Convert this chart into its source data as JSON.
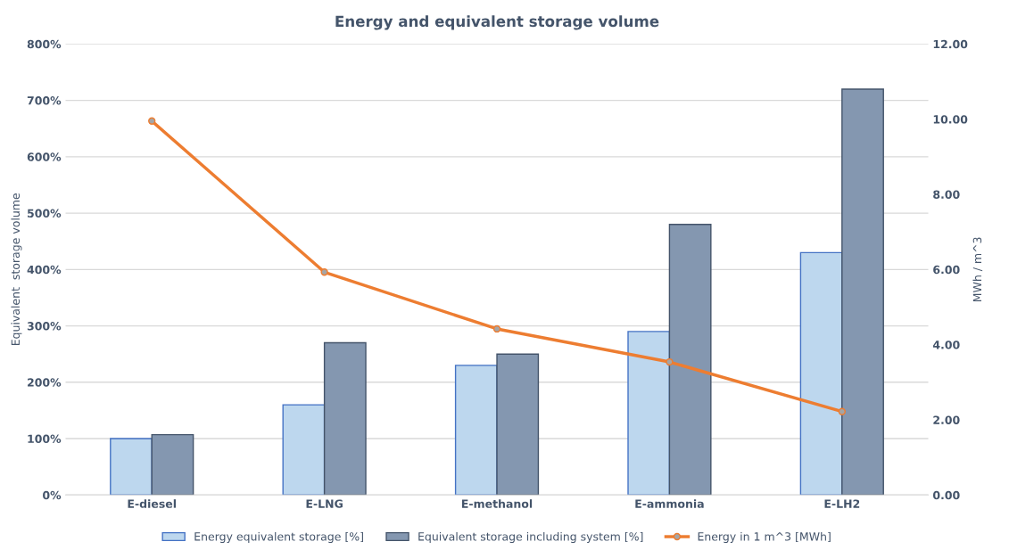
{
  "chart_data": {
    "type": "bar",
    "title": "Energy and equivalent storage volume",
    "categories": [
      "E-diesel",
      "E-LNG",
      "E-methanol",
      "E-ammonia",
      "E-LH2"
    ],
    "ylabel": "Equivalent  storage volume",
    "y2label": "MWh / m^3",
    "series": [
      {
        "name": "Energy equivalent storage [%]",
        "color": "#bdd7ee",
        "values": [
          100,
          160,
          230,
          290,
          430
        ]
      },
      {
        "name": "Equivalent storage including system [%]",
        "color": "#8497b0",
        "values": [
          107,
          270,
          250,
          480,
          720
        ]
      },
      {
        "name": "Energy in 1 m^3 [MWh]",
        "type": "line",
        "axis": "y2",
        "color": "#ed7d31",
        "marker": "circle",
        "values": [
          9.95,
          5.93,
          4.42,
          3.54,
          2.22
        ]
      }
    ],
    "ylim": [
      0,
      800
    ],
    "yticks": [
      {
        "value": 0,
        "label": "0%"
      },
      {
        "value": 100,
        "label": "100%"
      },
      {
        "value": 200,
        "label": "200%"
      },
      {
        "value": 300,
        "label": "300%"
      },
      {
        "value": 400,
        "label": "400%"
      },
      {
        "value": 500,
        "label": "500%"
      },
      {
        "value": 600,
        "label": "600%"
      },
      {
        "value": 700,
        "label": "700%"
      },
      {
        "value": 800,
        "label": "800%"
      }
    ],
    "y2lim": [
      0,
      12
    ],
    "y2ticks": [
      {
        "value": 0,
        "label": "0.00"
      },
      {
        "value": 2,
        "label": "2.00"
      },
      {
        "value": 4,
        "label": "4.00"
      },
      {
        "value": 6,
        "label": "6.00"
      },
      {
        "value": 8,
        "label": "8.00"
      },
      {
        "value": 10,
        "label": "10.00"
      },
      {
        "value": 12,
        "label": "12.00"
      }
    ],
    "grid": "y",
    "legend": "bottom"
  }
}
